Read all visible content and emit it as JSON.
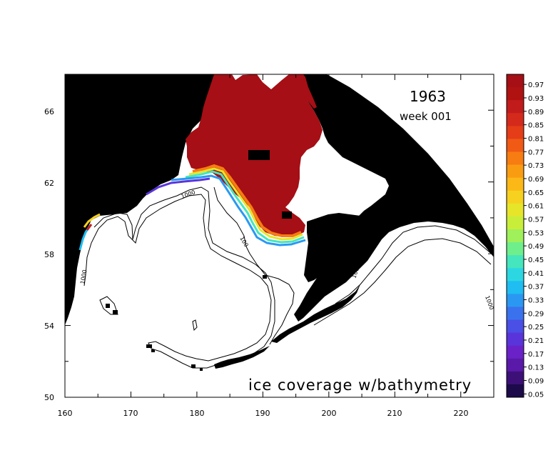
{
  "map": {
    "year": "1963",
    "week_label": "week 001",
    "caption": "ice coverage w/bathymetry",
    "lon_range": [
      160,
      225
    ],
    "lat_range": [
      50,
      68
    ],
    "x_ticks": [
      "160",
      "170",
      "180",
      "190",
      "200",
      "210",
      "220"
    ],
    "y_ticks": [
      "66",
      "62",
      "58",
      "54",
      "50"
    ],
    "contour_labels": [
      "1000",
      "100",
      "1000",
      "100",
      "1000"
    ],
    "colors": {
      "land": "#000000",
      "ocean": "#ffffff",
      "ice_full": "#a50f15",
      "contour": "#000000"
    }
  },
  "colorbar": {
    "labels": [
      "0.97",
      "0.93",
      "0.89",
      "0.85",
      "0.81",
      "0.77",
      "0.73",
      "0.69",
      "0.65",
      "0.61",
      "0.57",
      "0.53",
      "0.49",
      "0.45",
      "0.41",
      "0.37",
      "0.33",
      "0.29",
      "0.25",
      "0.21",
      "0.17",
      "0.13",
      "0.09",
      "0.05"
    ],
    "colors": [
      "#a50f15",
      "#b01212",
      "#c21b1b",
      "#d42a1c",
      "#e43d18",
      "#f05a15",
      "#f77c12",
      "#fa9c12",
      "#fbb817",
      "#f7d11f",
      "#e6e52a",
      "#c9ee3a",
      "#9ff05a",
      "#6fef8c",
      "#45e6bd",
      "#2cd7e2",
      "#1fbdf2",
      "#2a98f2",
      "#3a72ee",
      "#4a4fe6",
      "#5a34db",
      "#6a22c8",
      "#5a19a8",
      "#3d1078",
      "#1c0a4a"
    ]
  }
}
